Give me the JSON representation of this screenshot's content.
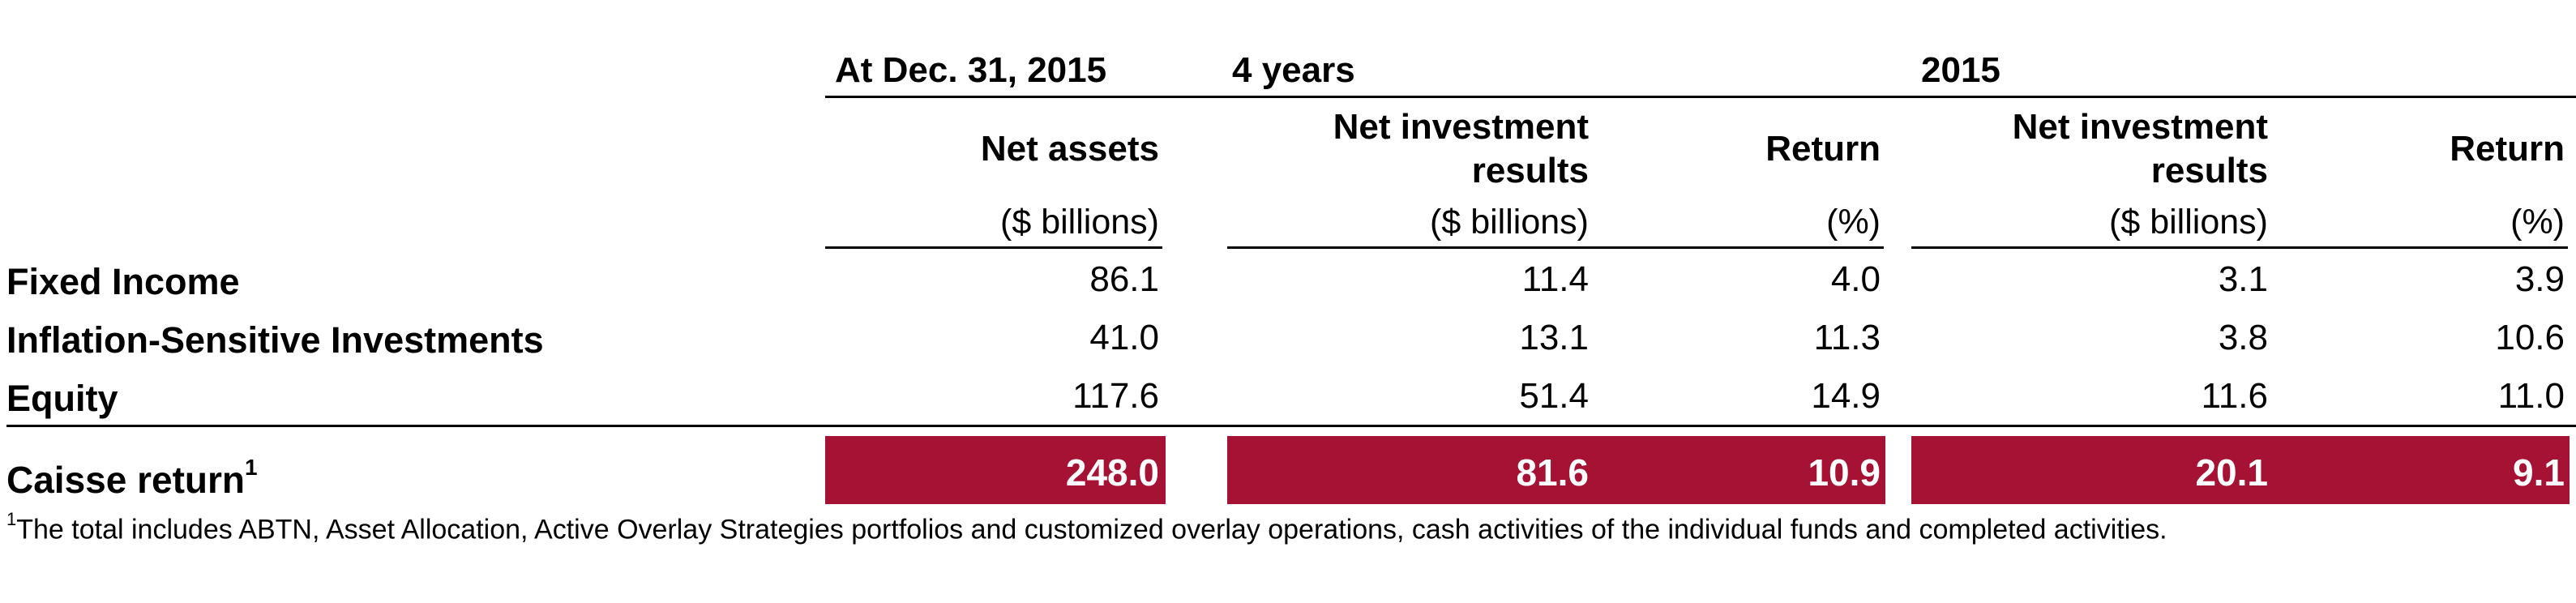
{
  "header": {
    "group_at": "At Dec. 31, 2015",
    "group_4y": "4 years",
    "group_2015": "2015",
    "col_net_assets": "Net assets",
    "col_net_inv_line1": "Net investment",
    "col_net_inv_line2": "results",
    "col_return": "Return",
    "unit_billions": "($ billions)",
    "unit_pct": "(%)"
  },
  "rows": [
    {
      "label": "Fixed Income",
      "net_assets": "86.1",
      "nir_4y": "11.4",
      "ret_4y": "4.0",
      "nir_2015": "3.1",
      "ret_2015": "3.9"
    },
    {
      "label": "Inflation-Sensitive Investments",
      "net_assets": "41.0",
      "nir_4y": "13.1",
      "ret_4y": "11.3",
      "nir_2015": "3.8",
      "ret_2015": "10.6"
    },
    {
      "label": "Equity",
      "net_assets": "117.6",
      "nir_4y": "51.4",
      "ret_4y": "14.9",
      "nir_2015": "11.6",
      "ret_2015": "11.0"
    }
  ],
  "total": {
    "label": "Caisse return",
    "sup": "1",
    "net_assets": "248.0",
    "nir_4y": "81.6",
    "ret_4y": "10.9",
    "nir_2015": "20.1",
    "ret_2015": "9.1"
  },
  "footnote": {
    "sup": "1",
    "text": "The total includes ABTN, Asset Allocation, Active Overlay Strategies portfolios and customized overlay operations, cash activities of the individual funds and completed activities."
  },
  "colors": {
    "highlight": "#a51234",
    "highlight_text": "#ffffff"
  }
}
